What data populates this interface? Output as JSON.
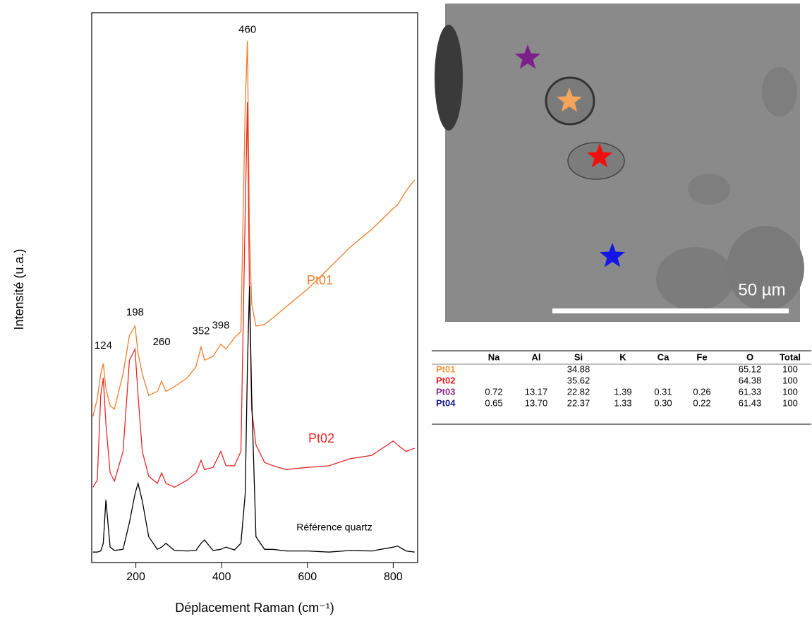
{
  "chart_data": {
    "type": "line",
    "x_label": "Déplacement Raman (cm⁻¹)",
    "y_label": "Intensité (u.a.)",
    "x": [
      100,
      110,
      118,
      124,
      130,
      140,
      150,
      170,
      185,
      198,
      205,
      215,
      230,
      250,
      260,
      270,
      290,
      320,
      340,
      352,
      360,
      380,
      398,
      410,
      430,
      445,
      455,
      460,
      465,
      470,
      480,
      500,
      520,
      550,
      600,
      650,
      700,
      750,
      800,
      810,
      830,
      850
    ],
    "series": [
      {
        "name": "Pt01",
        "color": "#f07d2a",
        "values": [
          26.6,
          29.8,
          34.3,
          36.2,
          31.7,
          28.5,
          27.9,
          34.3,
          41.3,
          43.0,
          38.1,
          34.3,
          30.4,
          31.1,
          33.0,
          31.1,
          32.0,
          33.6,
          35.6,
          39.2,
          36.8,
          37.5,
          39.7,
          38.8,
          40.9,
          42.0,
          83.1,
          94.9,
          59.9,
          47.1,
          43.0,
          43.3,
          44.5,
          46.5,
          49.7,
          53.5,
          57.4,
          60.6,
          64.4,
          65.0,
          67.6,
          69.6
        ]
      },
      {
        "name": "Pt02",
        "color": "#e8282a",
        "values": [
          13.7,
          15.0,
          30.4,
          33.6,
          25.3,
          16.3,
          14.8,
          20.2,
          36.8,
          38.8,
          30.4,
          20.2,
          15.7,
          14.4,
          16.3,
          14.4,
          13.7,
          15.0,
          16.3,
          18.6,
          16.9,
          17.3,
          20.2,
          17.6,
          17.6,
          20.2,
          63.8,
          83.7,
          48.4,
          27.9,
          21.4,
          18.2,
          17.6,
          16.9,
          17.3,
          17.6,
          18.9,
          19.5,
          22.1,
          21.4,
          20.2,
          20.8
        ]
      },
      {
        "name": "Référence quartz",
        "color": "#000000",
        "values": [
          1.9,
          1.9,
          2.1,
          3.5,
          11.4,
          2.8,
          2.2,
          2.4,
          7.3,
          12.5,
          14.4,
          11.2,
          4.7,
          2.4,
          2.8,
          3.5,
          2.2,
          2.1,
          2.2,
          3.5,
          4.1,
          2.2,
          2.4,
          2.8,
          2.3,
          3.5,
          12.5,
          35.6,
          50.3,
          30.4,
          4.7,
          2.4,
          2.4,
          2.1,
          2.1,
          1.9,
          2.2,
          2.1,
          2.8,
          3.0,
          2.1,
          1.9
        ]
      }
    ],
    "peak_labels": [
      124,
      198,
      260,
      352,
      398,
      460
    ],
    "xlim": [
      97,
      857
    ],
    "ylim": [
      0,
      100
    ],
    "xticks": [
      200,
      400,
      600,
      800
    ],
    "grid": false
  },
  "image": {
    "scale_label": "50 µm"
  },
  "table": {
    "columns": [
      "Na",
      "Al",
      "Si",
      "K",
      "Ca",
      "Fe",
      "O",
      "Total"
    ],
    "rows": [
      {
        "label": "Pt01",
        "color": "#f59a3a",
        "cells": [
          null,
          null,
          "34.88",
          null,
          null,
          null,
          "65.12",
          "100"
        ]
      },
      {
        "label": "Pt02",
        "color": "#e0202a",
        "cells": [
          null,
          null,
          "35.62",
          null,
          null,
          null,
          "64.38",
          "100"
        ]
      },
      {
        "label": "Pt03",
        "color": "#8a2a8a",
        "cells": [
          "0.72",
          "13.17",
          "22.82",
          "1.39",
          "0.31",
          "0.26",
          "61.33",
          "100"
        ]
      },
      {
        "label": "Pt04",
        "color": "#1a1a8a",
        "cells": [
          "0.65",
          "13.70",
          "22.37",
          "1.33",
          "0.30",
          "0.22",
          "61.43",
          "100"
        ]
      }
    ]
  }
}
